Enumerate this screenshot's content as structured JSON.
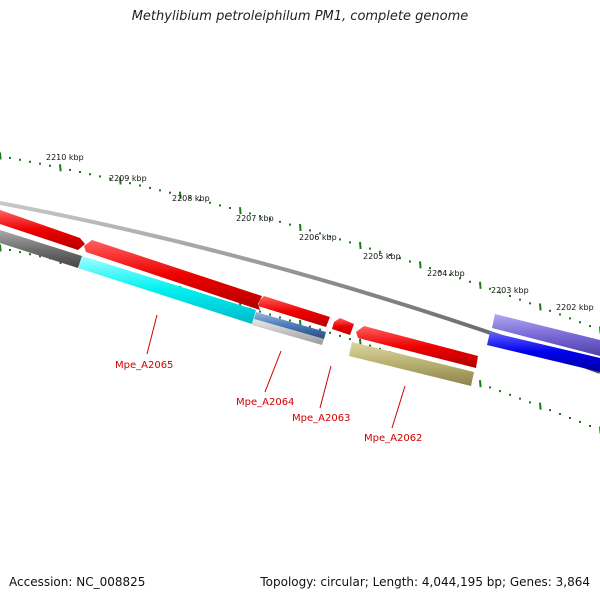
{
  "title": "Methylibium petroleiphilum PM1, complete genome",
  "accession": "Accession: NC_008825",
  "summary": "Topology: circular; Length: 4,044,195 bp; Genes: 3,864",
  "ruler_labels": [
    "2210 kbp",
    "2209 kbp",
    "2208 kbp",
    "2207 kbp",
    "2206 kbp",
    "2205 kbp",
    "2204 kbp",
    "2203 kbp",
    "2202 kbp"
  ],
  "gene_labels": [
    "Mpe_A2065",
    "Mpe_A2064",
    "Mpe_A2063",
    "Mpe_A2062"
  ],
  "colors": {
    "forward_gene": "#ee0000",
    "cds_cyan": "#00f0f0",
    "cds_steelblue": "#4a7ab8",
    "cds_olive": "#b8b070",
    "cds_gray": "#707070",
    "cds_lavender": "#7a6ad8",
    "cds_blue": "#0000ee",
    "ticks": "#1a7a1a",
    "label": "#d00000"
  }
}
